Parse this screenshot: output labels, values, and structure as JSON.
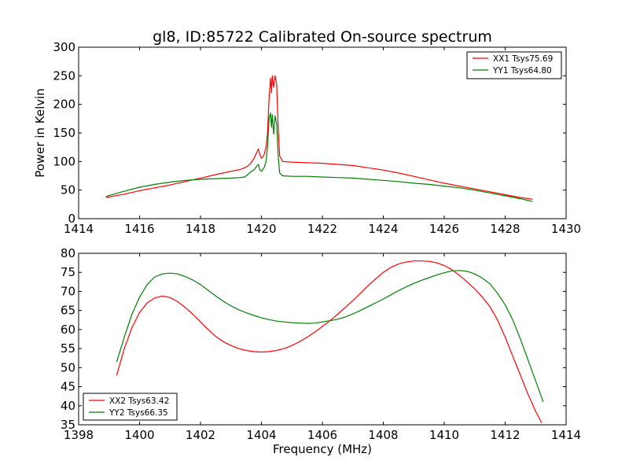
{
  "figure": {
    "title": "gl8, ID:85722 Calibrated On-source spectrum",
    "xlabel_bottom": "Frequency (MHz)"
  },
  "colors": {
    "red": "#ff0000",
    "green": "#008000"
  },
  "chart_data": [
    {
      "type": "line",
      "title": "gl8, ID:85722 Calibrated On-source spectrum",
      "xlabel": "",
      "ylabel": "Power in Kelvin",
      "xlim": [
        1414,
        1430
      ],
      "ylim": [
        0,
        300
      ],
      "xticks": [
        1414,
        1416,
        1418,
        1420,
        1422,
        1424,
        1426,
        1428,
        1430
      ],
      "yticks": [
        0,
        50,
        100,
        150,
        200,
        250,
        300
      ],
      "legend_position": "top-right",
      "grid": false,
      "series": [
        {
          "name": "XX1 Tsys75.69",
          "color": "#ff0000",
          "points": [
            [
              1414.9,
              37
            ],
            [
              1415.5,
              43
            ],
            [
              1416.0,
              49
            ],
            [
              1416.5,
              54
            ],
            [
              1417.0,
              59
            ],
            [
              1417.5,
              65
            ],
            [
              1418.0,
              71
            ],
            [
              1418.5,
              77
            ],
            [
              1419.0,
              83
            ],
            [
              1419.3,
              86
            ],
            [
              1419.45,
              89
            ],
            [
              1419.55,
              92
            ],
            [
              1419.65,
              97
            ],
            [
              1419.75,
              105
            ],
            [
              1419.85,
              116
            ],
            [
              1419.9,
              122
            ],
            [
              1419.95,
              112
            ],
            [
              1420.0,
              106
            ],
            [
              1420.05,
              108
            ],
            [
              1420.1,
              114
            ],
            [
              1420.15,
              125
            ],
            [
              1420.2,
              150
            ],
            [
              1420.25,
              210
            ],
            [
              1420.3,
              246
            ],
            [
              1420.33,
              220
            ],
            [
              1420.36,
              250
            ],
            [
              1420.4,
              230
            ],
            [
              1420.45,
              250
            ],
            [
              1420.5,
              235
            ],
            [
              1420.55,
              160
            ],
            [
              1420.6,
              110
            ],
            [
              1420.7,
              100
            ],
            [
              1421.0,
              99
            ],
            [
              1421.5,
              98
            ],
            [
              1422.0,
              97
            ],
            [
              1422.5,
              95
            ],
            [
              1423.0,
              93
            ],
            [
              1423.5,
              89
            ],
            [
              1424.0,
              85
            ],
            [
              1424.5,
              80
            ],
            [
              1425.0,
              74
            ],
            [
              1425.5,
              68
            ],
            [
              1426.0,
              62
            ],
            [
              1426.5,
              57
            ],
            [
              1427.0,
              52
            ],
            [
              1427.5,
              47
            ],
            [
              1428.0,
              42
            ],
            [
              1428.5,
              37
            ],
            [
              1428.9,
              34
            ]
          ]
        },
        {
          "name": "YY1 Tsys64.80",
          "color": "#008000",
          "points": [
            [
              1414.9,
              39
            ],
            [
              1415.5,
              48
            ],
            [
              1416.0,
              55
            ],
            [
              1416.5,
              60
            ],
            [
              1417.0,
              64
            ],
            [
              1417.5,
              67
            ],
            [
              1418.0,
              69
            ],
            [
              1418.5,
              70
            ],
            [
              1419.0,
              71
            ],
            [
              1419.3,
              72
            ],
            [
              1419.45,
              73
            ],
            [
              1419.55,
              77
            ],
            [
              1419.65,
              82
            ],
            [
              1419.75,
              85
            ],
            [
              1419.85,
              92
            ],
            [
              1419.9,
              95
            ],
            [
              1419.95,
              85
            ],
            [
              1420.0,
              83
            ],
            [
              1420.05,
              86
            ],
            [
              1420.1,
              91
            ],
            [
              1420.15,
              100
            ],
            [
              1420.2,
              125
            ],
            [
              1420.25,
              175
            ],
            [
              1420.3,
              185
            ],
            [
              1420.33,
              160
            ],
            [
              1420.36,
              182
            ],
            [
              1420.4,
              148
            ],
            [
              1420.45,
              180
            ],
            [
              1420.5,
              165
            ],
            [
              1420.55,
              110
            ],
            [
              1420.6,
              80
            ],
            [
              1420.7,
              75
            ],
            [
              1421.0,
              74
            ],
            [
              1421.5,
              74
            ],
            [
              1422.0,
              73
            ],
            [
              1422.5,
              72
            ],
            [
              1423.0,
              71
            ],
            [
              1423.5,
              69
            ],
            [
              1424.0,
              67
            ],
            [
              1424.5,
              65
            ],
            [
              1425.0,
              62
            ],
            [
              1425.5,
              60
            ],
            [
              1426.0,
              57
            ],
            [
              1426.5,
              54
            ],
            [
              1427.0,
              50
            ],
            [
              1427.5,
              45
            ],
            [
              1428.0,
              40
            ],
            [
              1428.5,
              35
            ],
            [
              1428.9,
              30
            ]
          ]
        }
      ]
    },
    {
      "type": "line",
      "title": "",
      "xlabel": "Frequency (MHz)",
      "ylabel": "",
      "xlim": [
        1398,
        1414
      ],
      "ylim": [
        35,
        80
      ],
      "xticks": [
        1398,
        1400,
        1402,
        1404,
        1406,
        1408,
        1410,
        1412,
        1414
      ],
      "yticks": [
        35,
        40,
        45,
        50,
        55,
        60,
        65,
        70,
        75,
        80
      ],
      "legend_position": "bottom-left",
      "grid": false,
      "series": [
        {
          "name": "XX2 Tsys63.42",
          "color": "#ff0000",
          "points": [
            [
              1399.25,
              48
            ],
            [
              1399.5,
              55
            ],
            [
              1399.75,
              60.5
            ],
            [
              1400.0,
              64.5
            ],
            [
              1400.25,
              67
            ],
            [
              1400.5,
              68.3
            ],
            [
              1400.75,
              68.8
            ],
            [
              1401.0,
              68.4
            ],
            [
              1401.25,
              67.3
            ],
            [
              1401.5,
              65.8
            ],
            [
              1401.75,
              64
            ],
            [
              1402.0,
              62
            ],
            [
              1402.25,
              60
            ],
            [
              1402.5,
              58.2
            ],
            [
              1402.75,
              56.8
            ],
            [
              1403.0,
              55.8
            ],
            [
              1403.25,
              55
            ],
            [
              1403.5,
              54.5
            ],
            [
              1403.75,
              54.2
            ],
            [
              1404.0,
              54.1
            ],
            [
              1404.25,
              54.2
            ],
            [
              1404.5,
              54.5
            ],
            [
              1404.75,
              55
            ],
            [
              1405.0,
              55.8
            ],
            [
              1405.25,
              56.8
            ],
            [
              1405.5,
              58
            ],
            [
              1405.75,
              59.3
            ],
            [
              1406.0,
              60.8
            ],
            [
              1406.25,
              62.3
            ],
            [
              1406.5,
              64
            ],
            [
              1406.75,
              65.8
            ],
            [
              1407.0,
              67.6
            ],
            [
              1407.25,
              69.5
            ],
            [
              1407.5,
              71.5
            ],
            [
              1407.75,
              73.3
            ],
            [
              1408.0,
              75
            ],
            [
              1408.25,
              76.3
            ],
            [
              1408.5,
              77.2
            ],
            [
              1408.75,
              77.7
            ],
            [
              1409.0,
              78
            ],
            [
              1409.25,
              78
            ],
            [
              1409.5,
              77.9
            ],
            [
              1409.75,
              77.5
            ],
            [
              1410.0,
              76.8
            ],
            [
              1410.25,
              75.7
            ],
            [
              1410.5,
              74.2
            ],
            [
              1410.75,
              72.5
            ],
            [
              1411.0,
              70.7
            ],
            [
              1411.25,
              68.5
            ],
            [
              1411.5,
              66
            ],
            [
              1411.75,
              62.5
            ],
            [
              1412.0,
              58
            ],
            [
              1412.25,
              53
            ],
            [
              1412.5,
              48
            ],
            [
              1412.75,
              43
            ],
            [
              1413.0,
              38.5
            ],
            [
              1413.2,
              35.5
            ]
          ]
        },
        {
          "name": "YY2 Tsys66.35",
          "color": "#008000",
          "points": [
            [
              1399.25,
              51.5
            ],
            [
              1399.5,
              58
            ],
            [
              1399.75,
              64
            ],
            [
              1400.0,
              68.5
            ],
            [
              1400.25,
              71.8
            ],
            [
              1400.5,
              73.8
            ],
            [
              1400.75,
              74.6
            ],
            [
              1401.0,
              74.8
            ],
            [
              1401.25,
              74.6
            ],
            [
              1401.5,
              73.9
            ],
            [
              1401.75,
              73
            ],
            [
              1402.0,
              71.8
            ],
            [
              1402.25,
              70.3
            ],
            [
              1402.5,
              68.8
            ],
            [
              1402.75,
              67.4
            ],
            [
              1403.0,
              66.2
            ],
            [
              1403.25,
              65.2
            ],
            [
              1403.5,
              64.4
            ],
            [
              1403.75,
              63.7
            ],
            [
              1404.0,
              63.1
            ],
            [
              1404.25,
              62.6
            ],
            [
              1404.5,
              62.2
            ],
            [
              1404.75,
              62
            ],
            [
              1405.0,
              61.8
            ],
            [
              1405.25,
              61.7
            ],
            [
              1405.5,
              61.6
            ],
            [
              1405.75,
              61.7
            ],
            [
              1406.0,
              62
            ],
            [
              1406.25,
              62.3
            ],
            [
              1406.5,
              62.7
            ],
            [
              1406.75,
              63.3
            ],
            [
              1407.0,
              64.1
            ],
            [
              1407.25,
              65
            ],
            [
              1407.5,
              66
            ],
            [
              1407.75,
              67
            ],
            [
              1408.0,
              68
            ],
            [
              1408.25,
              69.1
            ],
            [
              1408.5,
              70.2
            ],
            [
              1408.75,
              71.2
            ],
            [
              1409.0,
              72.1
            ],
            [
              1409.25,
              72.9
            ],
            [
              1409.5,
              73.6
            ],
            [
              1409.75,
              74.3
            ],
            [
              1410.0,
              74.9
            ],
            [
              1410.25,
              75.4
            ],
            [
              1410.5,
              75.5
            ],
            [
              1410.75,
              75.3
            ],
            [
              1411.0,
              74.6
            ],
            [
              1411.25,
              73.5
            ],
            [
              1411.5,
              72
            ],
            [
              1411.75,
              69.5
            ],
            [
              1412.0,
              66.5
            ],
            [
              1412.25,
              62.5
            ],
            [
              1412.5,
              57.5
            ],
            [
              1412.75,
              52
            ],
            [
              1413.0,
              46.5
            ],
            [
              1413.25,
              41
            ]
          ]
        }
      ]
    }
  ]
}
